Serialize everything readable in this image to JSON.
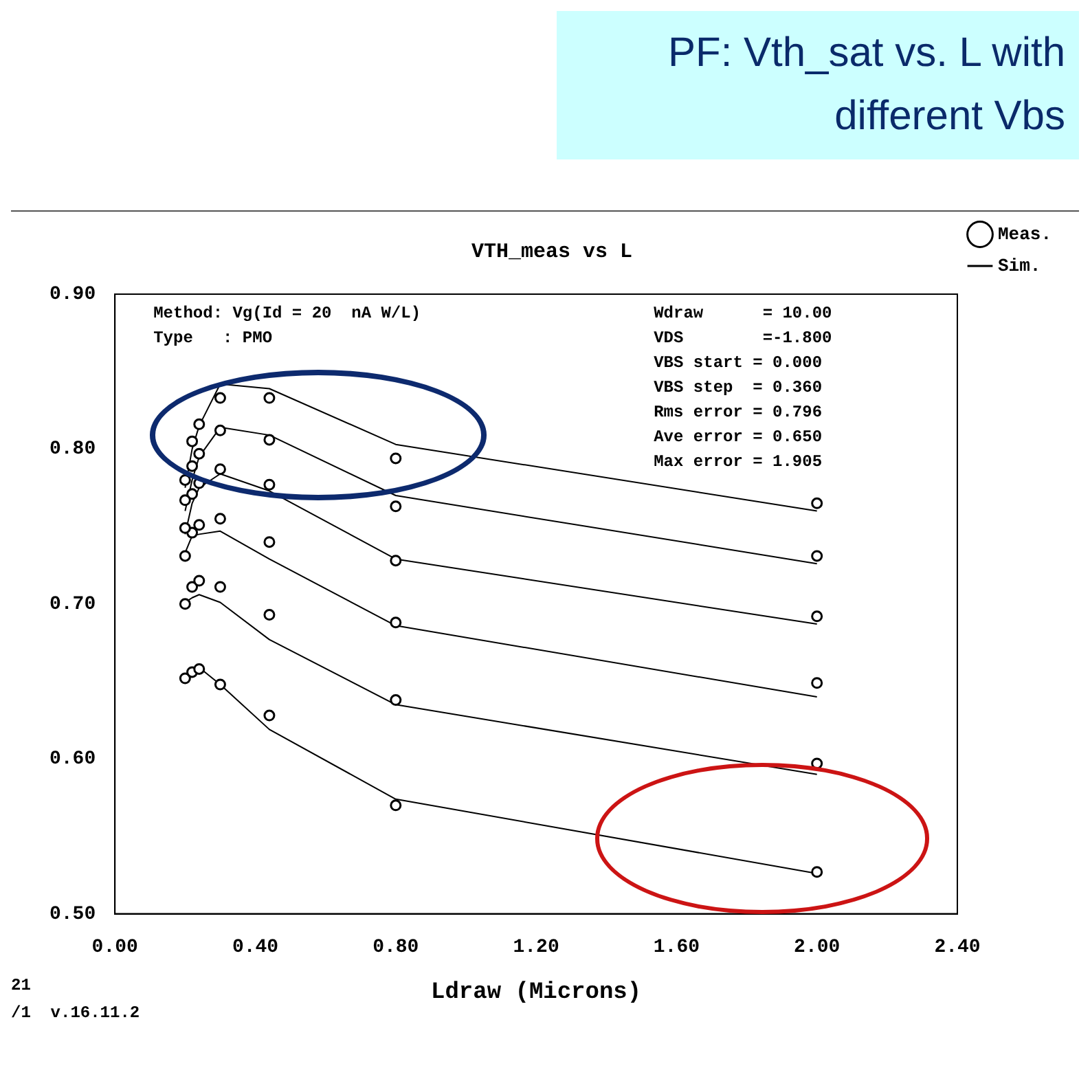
{
  "chart_data": {
    "type": "scatter",
    "title": "PF: Vth_sat vs. L with different Vbs",
    "subtitle": "VTH_meas vs L",
    "xlabel": "Ldraw (Microns)",
    "x": [
      0.2,
      0.22,
      0.24,
      0.3,
      0.44,
      0.8,
      2.0
    ],
    "xlim": [
      0,
      2.4
    ],
    "xticks": [
      {
        "value": 0,
        "label": "0.00"
      },
      {
        "value": 0.4,
        "label": "0.40"
      },
      {
        "value": 0.8,
        "label": "0.80"
      },
      {
        "value": 1.2,
        "label": "1.20"
      },
      {
        "value": 1.6,
        "label": "1.60"
      },
      {
        "value": 2,
        "label": "2.00"
      },
      {
        "value": 2.4,
        "label": "2.40"
      }
    ],
    "ylim": [
      0.5,
      0.9
    ],
    "yticks": [
      {
        "value": 0.5,
        "label": "0.50"
      },
      {
        "value": 0.6,
        "label": "0.60"
      },
      {
        "value": 0.7,
        "label": "0.70"
      },
      {
        "value": 0.8,
        "label": "0.80"
      },
      {
        "value": 0.9,
        "label": "0.90"
      }
    ],
    "grid": false,
    "legend": "top right",
    "series": [
      {
        "name": "Meas.",
        "type": "scatter",
        "marker": "circle",
        "color": "#000000",
        "values": [
          0.78,
          0.805,
          0.816,
          0.833,
          0.833,
          0.794,
          0.765
        ]
      },
      {
        "type": "scatter",
        "marker": "circle",
        "color": "#000000",
        "values": [
          0.767,
          0.789,
          0.797,
          0.812,
          0.806,
          0.763,
          0.731
        ]
      },
      {
        "type": "scatter",
        "marker": "circle",
        "color": "#000000",
        "values": [
          0.749,
          0.771,
          0.778,
          0.787,
          0.777,
          0.728,
          0.692
        ]
      },
      {
        "type": "scatter",
        "marker": "circle",
        "color": "#000000",
        "values": [
          0.731,
          0.746,
          0.751,
          0.755,
          0.74,
          0.688,
          0.649
        ]
      },
      {
        "type": "scatter",
        "marker": "circle",
        "color": "#000000",
        "values": [
          0.7,
          0.711,
          0.715,
          0.711,
          0.693,
          0.638,
          0.597
        ]
      },
      {
        "type": "scatter",
        "marker": "circle",
        "color": "#000000",
        "values": [
          0.652,
          0.656,
          0.658,
          0.648,
          0.628,
          0.57,
          0.527
        ]
      },
      {
        "name": "Sim.",
        "type": "line",
        "marker": "none",
        "color": "#000000",
        "values": [
          0.775,
          0.8,
          0.815,
          0.842,
          0.839,
          0.803,
          0.76
        ]
      },
      {
        "type": "line",
        "marker": "none",
        "color": "#000000",
        "values": [
          0.76,
          0.78,
          0.795,
          0.814,
          0.809,
          0.77,
          0.726
        ]
      },
      {
        "type": "line",
        "marker": "none",
        "color": "#000000",
        "values": [
          0.745,
          0.765,
          0.775,
          0.784,
          0.773,
          0.729,
          0.687
        ]
      },
      {
        "type": "line",
        "marker": "none",
        "color": "#000000",
        "values": [
          0.733,
          0.744,
          0.745,
          0.747,
          0.729,
          0.686,
          0.64
        ]
      },
      {
        "type": "line",
        "marker": "none",
        "color": "#000000",
        "values": [
          0.701,
          0.704,
          0.706,
          0.701,
          0.677,
          0.635,
          0.59
        ]
      },
      {
        "type": "line",
        "marker": "none",
        "color": "#000000",
        "values": [
          0.653,
          0.656,
          0.659,
          0.648,
          0.619,
          0.574,
          0.526
        ]
      }
    ],
    "annotations": [
      "Method: Vg(Id = 20  nA W/L)",
      "Type   : PMO",
      "Wdraw      = 10.00",
      "VDS        =-1.800",
      "VBS start = 0.000",
      "VBS step  = 0.360",
      "Rms error = 0.796",
      "Ave error = 0.650",
      "Max error = 1.905",
      "21",
      "/1  v.16.11.2"
    ]
  }
}
